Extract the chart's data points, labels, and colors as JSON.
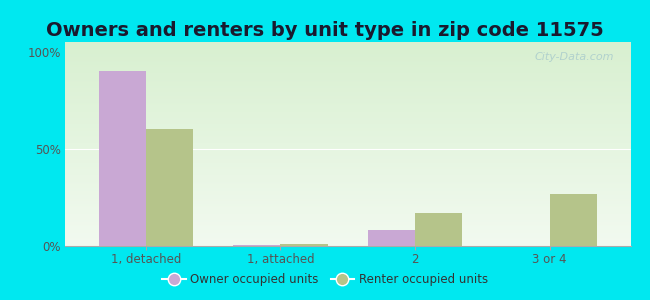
{
  "title": "Owners and renters by unit type in zip code 11575",
  "categories": [
    "1, detached",
    "1, attached",
    "2",
    "3 or 4"
  ],
  "owner_values": [
    90,
    0.5,
    8,
    0
  ],
  "renter_values": [
    60,
    1,
    17,
    27
  ],
  "owner_color": "#c9a8d4",
  "renter_color": "#b5c48a",
  "outer_bg": "#00e8f0",
  "plot_bg_top": "#f0faf0",
  "plot_bg_bottom": "#d8f0d8",
  "yticks": [
    0,
    50,
    100
  ],
  "ytick_labels": [
    "0%",
    "50%",
    "100%"
  ],
  "ylim": [
    0,
    105
  ],
  "legend_owner": "Owner occupied units",
  "legend_renter": "Renter occupied units",
  "watermark": "City-Data.com",
  "title_fontsize": 14,
  "bar_width": 0.35,
  "title_color": "#1a1a2e",
  "tick_color": "#555555",
  "watermark_color": "#aacccc"
}
